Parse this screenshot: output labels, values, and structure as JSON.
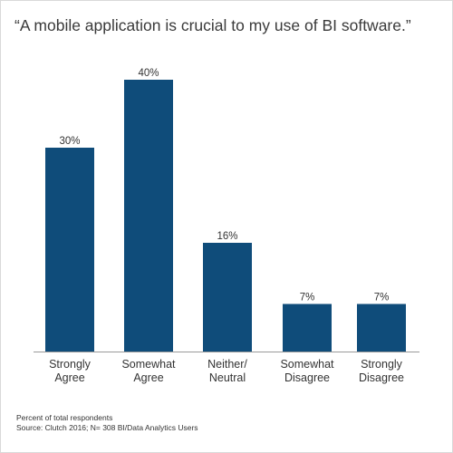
{
  "chart_data": {
    "type": "bar",
    "title": "“A mobile application is crucial to my use of BI software.”",
    "categories": [
      [
        "Strongly",
        "Agree"
      ],
      [
        "Somewhat",
        "Agree"
      ],
      [
        "Neither/",
        "Neutral"
      ],
      [
        "Somewhat",
        "Disagree"
      ],
      [
        "Strongly",
        "Disagree"
      ]
    ],
    "values": [
      30,
      40,
      16,
      7,
      7
    ],
    "value_labels": [
      "30%",
      "40%",
      "16%",
      "7%",
      "7%"
    ],
    "unit": "%",
    "ylim": [
      0,
      40
    ],
    "grid": false,
    "legend": "none",
    "xlabel": "",
    "ylabel": ""
  },
  "footnotes": {
    "line1": "Percent of total respondents",
    "line2": "Source: Clutch 2016; N= 308 BI/Data Analytics Users"
  },
  "colors": {
    "bar": "#0f4c7a",
    "axis": "#999999",
    "text": "#333333"
  }
}
